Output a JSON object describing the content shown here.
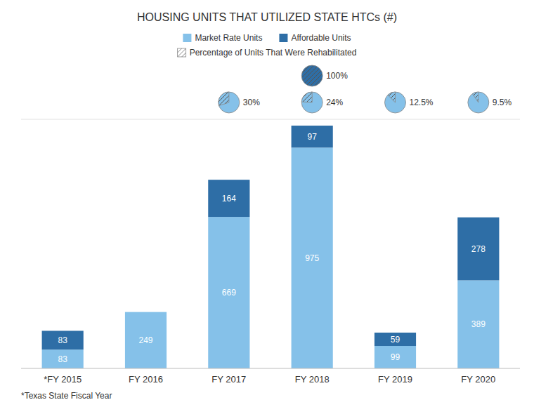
{
  "chart_data": {
    "type": "bar",
    "stacked": true,
    "title": "HOUSING UNITS THAT UTILIZED STATE HTCs (#)",
    "categories": [
      "*FY 2015",
      "FY 2016",
      "FY 2017",
      "FY 2018",
      "FY 2019",
      "FY 2020"
    ],
    "series": [
      {
        "name": "Market Rate Units",
        "color": "#85C1E9",
        "values": [
          83,
          249,
          669,
          975,
          99,
          389
        ]
      },
      {
        "name": "Affordable Units",
        "color": "#2E6EA6",
        "values": [
          83,
          0,
          164,
          97,
          59,
          278
        ]
      },
      {
        "name": "Percentage of Units That Were Rehabilitated",
        "type": "pie",
        "color": "#85C1E9",
        "values": [
          null,
          null,
          30,
          24,
          12.5,
          9.5
        ],
        "value_labels": [
          null,
          null,
          "30%",
          "24%",
          "12.5%",
          "9.5%"
        ]
      },
      {
        "type": "pie",
        "color": "#2E6EA6",
        "values": [
          null,
          null,
          null,
          100,
          null,
          null
        ],
        "value_labels": [
          null,
          null,
          null,
          "100%",
          null,
          null
        ]
      }
    ],
    "ylim": [
      0,
      1100
    ],
    "tick_labels": "x",
    "data_labels": true,
    "legend": "top",
    "footnote": "*Texas State Fiscal Year"
  }
}
